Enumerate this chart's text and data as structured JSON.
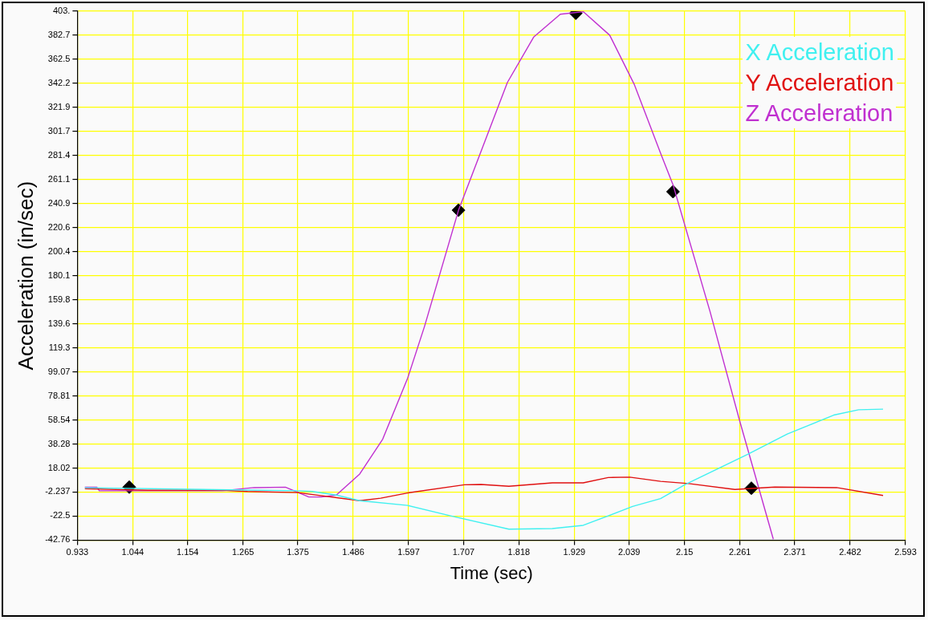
{
  "chart_data": {
    "type": "line",
    "xlabel": "Time (sec)",
    "ylabel": "Acceleration (in/sec)",
    "xlim": [
      0.933,
      2.593
    ],
    "xticks": [
      0.933,
      1.044,
      1.154,
      1.265,
      1.375,
      1.486,
      1.597,
      1.707,
      1.818,
      1.929,
      2.039,
      2.15,
      2.261,
      2.371,
      2.482,
      2.593
    ],
    "ylim": [
      -42.76,
      403
    ],
    "yticks": [
      -42.76,
      -22.5,
      -2.237,
      18.02,
      38.28,
      58.54,
      78.81,
      99.07,
      119.3,
      139.6,
      159.8,
      180.1,
      200.4,
      220.6,
      240.9,
      261.1,
      281.4,
      301.7,
      321.9,
      342.2,
      362.5,
      382.7,
      {
        "value": 403,
        "label": "403."
      }
    ],
    "grid": true,
    "legend": "top right",
    "marker": "none",
    "series": [
      {
        "name": "X Acceleration",
        "color": "#40f0f0",
        "x": [
          0.948,
          1.374,
          1.404,
          1.452,
          1.499,
          1.595,
          1.681,
          1.798,
          1.885,
          1.947,
          2.046,
          2.102,
          2.152,
          2.276,
          2.356,
          2.449,
          2.499,
          2.548
        ],
        "values": [
          1.4,
          -1.2,
          -1.8,
          -4.8,
          -9.5,
          -13.5,
          -22.3,
          -33.5,
          -33.0,
          -30.3,
          -14.4,
          -7.8,
          4.2,
          29.4,
          46.6,
          62.6,
          67.1,
          67.6
        ]
      },
      {
        "name": "Y Acceleration",
        "color": "#e01010",
        "x": [
          0.948,
          1.074,
          1.224,
          1.274,
          1.374,
          1.499,
          1.541,
          1.595,
          1.709,
          1.742,
          1.798,
          1.885,
          1.947,
          1.997,
          2.04,
          2.102,
          2.158,
          2.251,
          2.331,
          2.455,
          2.548
        ],
        "values": [
          0.5,
          -0.7,
          -0.7,
          -1.8,
          -2.7,
          -9.5,
          -7.4,
          -3.0,
          3.9,
          4.2,
          2.6,
          5.5,
          5.5,
          10.0,
          10.3,
          6.8,
          4.9,
          -0.1,
          2.0,
          1.5,
          -5.1
        ]
      },
      {
        "name": "Z Acceleration",
        "color": "#c030d0",
        "x": [
          0.948,
          0.972,
          0.977,
          1.224,
          1.287,
          1.35,
          1.397,
          1.422,
          1.452,
          1.499,
          1.545,
          1.595,
          1.629,
          1.697,
          1.795,
          1.848,
          1.901,
          1.947,
          2.0,
          2.049,
          2.102,
          2.127,
          2.201,
          2.26,
          2.328
        ],
        "values": [
          1.9,
          1.9,
          -1.2,
          -1.2,
          1.5,
          1.9,
          -6.4,
          -6.4,
          -4.8,
          13.0,
          42.3,
          93.7,
          137.6,
          235.3,
          343.0,
          381.4,
          400.5,
          402.6,
          382.8,
          341.6,
          283.3,
          256.7,
          150.1,
          58.6,
          -42
        ]
      },
      {
        "type": "scatter",
        "marker": "diamond",
        "color": "#000000",
        "x": [
          1.037,
          1.697,
          1.932,
          2.127,
          2.284
        ],
        "values": [
          1.9,
          235.3,
          401.3,
          250.9,
          1.0
        ]
      }
    ]
  }
}
